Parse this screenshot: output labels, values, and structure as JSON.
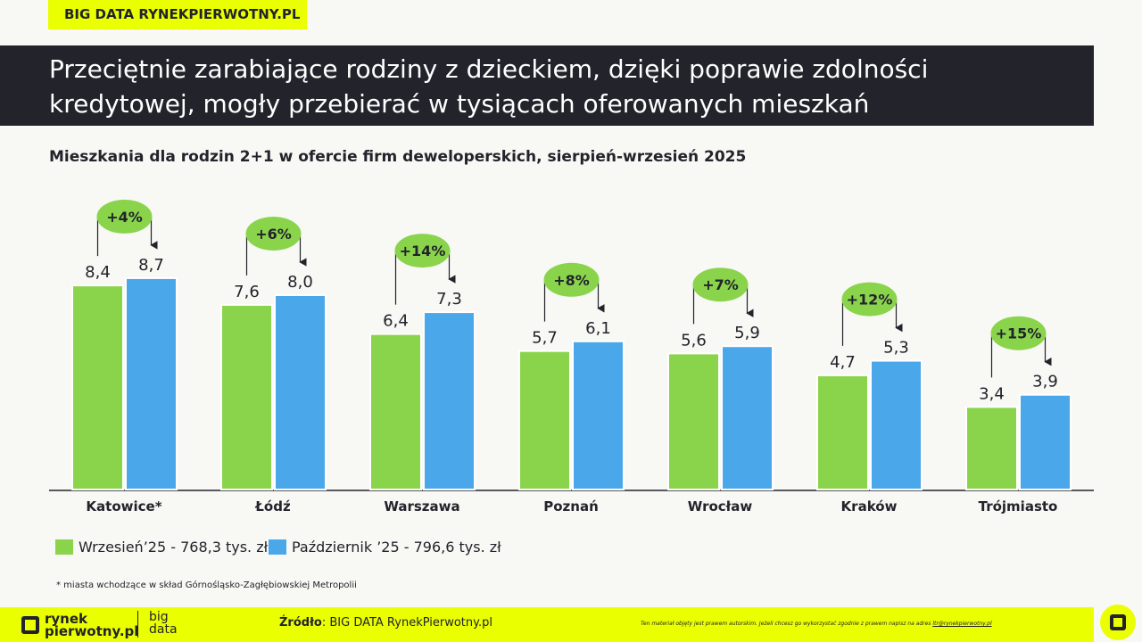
{
  "header": {
    "tag": "BIG DATA RYNEKPIERWOTNY.PL",
    "title_line1": "Przeciętnie zarabiające rodziny z dzieckiem, dzięki poprawie zdolności",
    "title_line2": "kredytowej, mogły przebierać w tysiącach oferowanych mieszkań"
  },
  "chart_data": {
    "type": "bar",
    "title": "Mieszkania dla rodzin 2+1 w ofercie firm deweloperskich, sierpień-wrzesień 2025",
    "categories": [
      "Katowice*",
      "Łódź",
      "Warszawa",
      "Poznań",
      "Wrocław",
      "Kraków",
      "Trójmiasto"
    ],
    "series": [
      {
        "name": "Wrzesień’25 - 768,3 tys. zł",
        "color": "#8ad44c",
        "values": [
          8.4,
          7.6,
          6.4,
          5.7,
          5.6,
          4.7,
          3.4
        ],
        "labels": [
          "8,4",
          "7,6",
          "6,4",
          "5,7",
          "5,6",
          "4,7",
          "3,4"
        ]
      },
      {
        "name": "Październik ’25 - 796,6 tys. zł",
        "color": "#4aa8ea",
        "values": [
          8.7,
          8.0,
          7.3,
          6.1,
          5.9,
          5.3,
          3.9
        ],
        "labels": [
          "8,7",
          "8,0",
          "7,3",
          "6,1",
          "5,9",
          "5,3",
          "3,9"
        ]
      }
    ],
    "changes": [
      "+4%",
      "+6%",
      "+14%",
      "+8%",
      "+7%",
      "+12%",
      "+15%"
    ],
    "change_color": "#8ad44c",
    "legend": "bottom-left",
    "grid": false
  },
  "note": "* miasta wchodzące w skład Górnośląsko-Zagłębiowskiej Metropolii",
  "footer": {
    "logo1": "rynek",
    "logo2": "pierwotny.pl",
    "big1": "big",
    "big2": "data",
    "source_label": "Źródło",
    "source": ": BIG DATA RynekPierwotny.pl",
    "copyright": "Ten materiał objęty jest prawem autorskim. Jeżeli chcesz go wykorzystać zgodnie z prawem napisz na adres ",
    "email": "ltr@rynekpierwotny.pl"
  }
}
